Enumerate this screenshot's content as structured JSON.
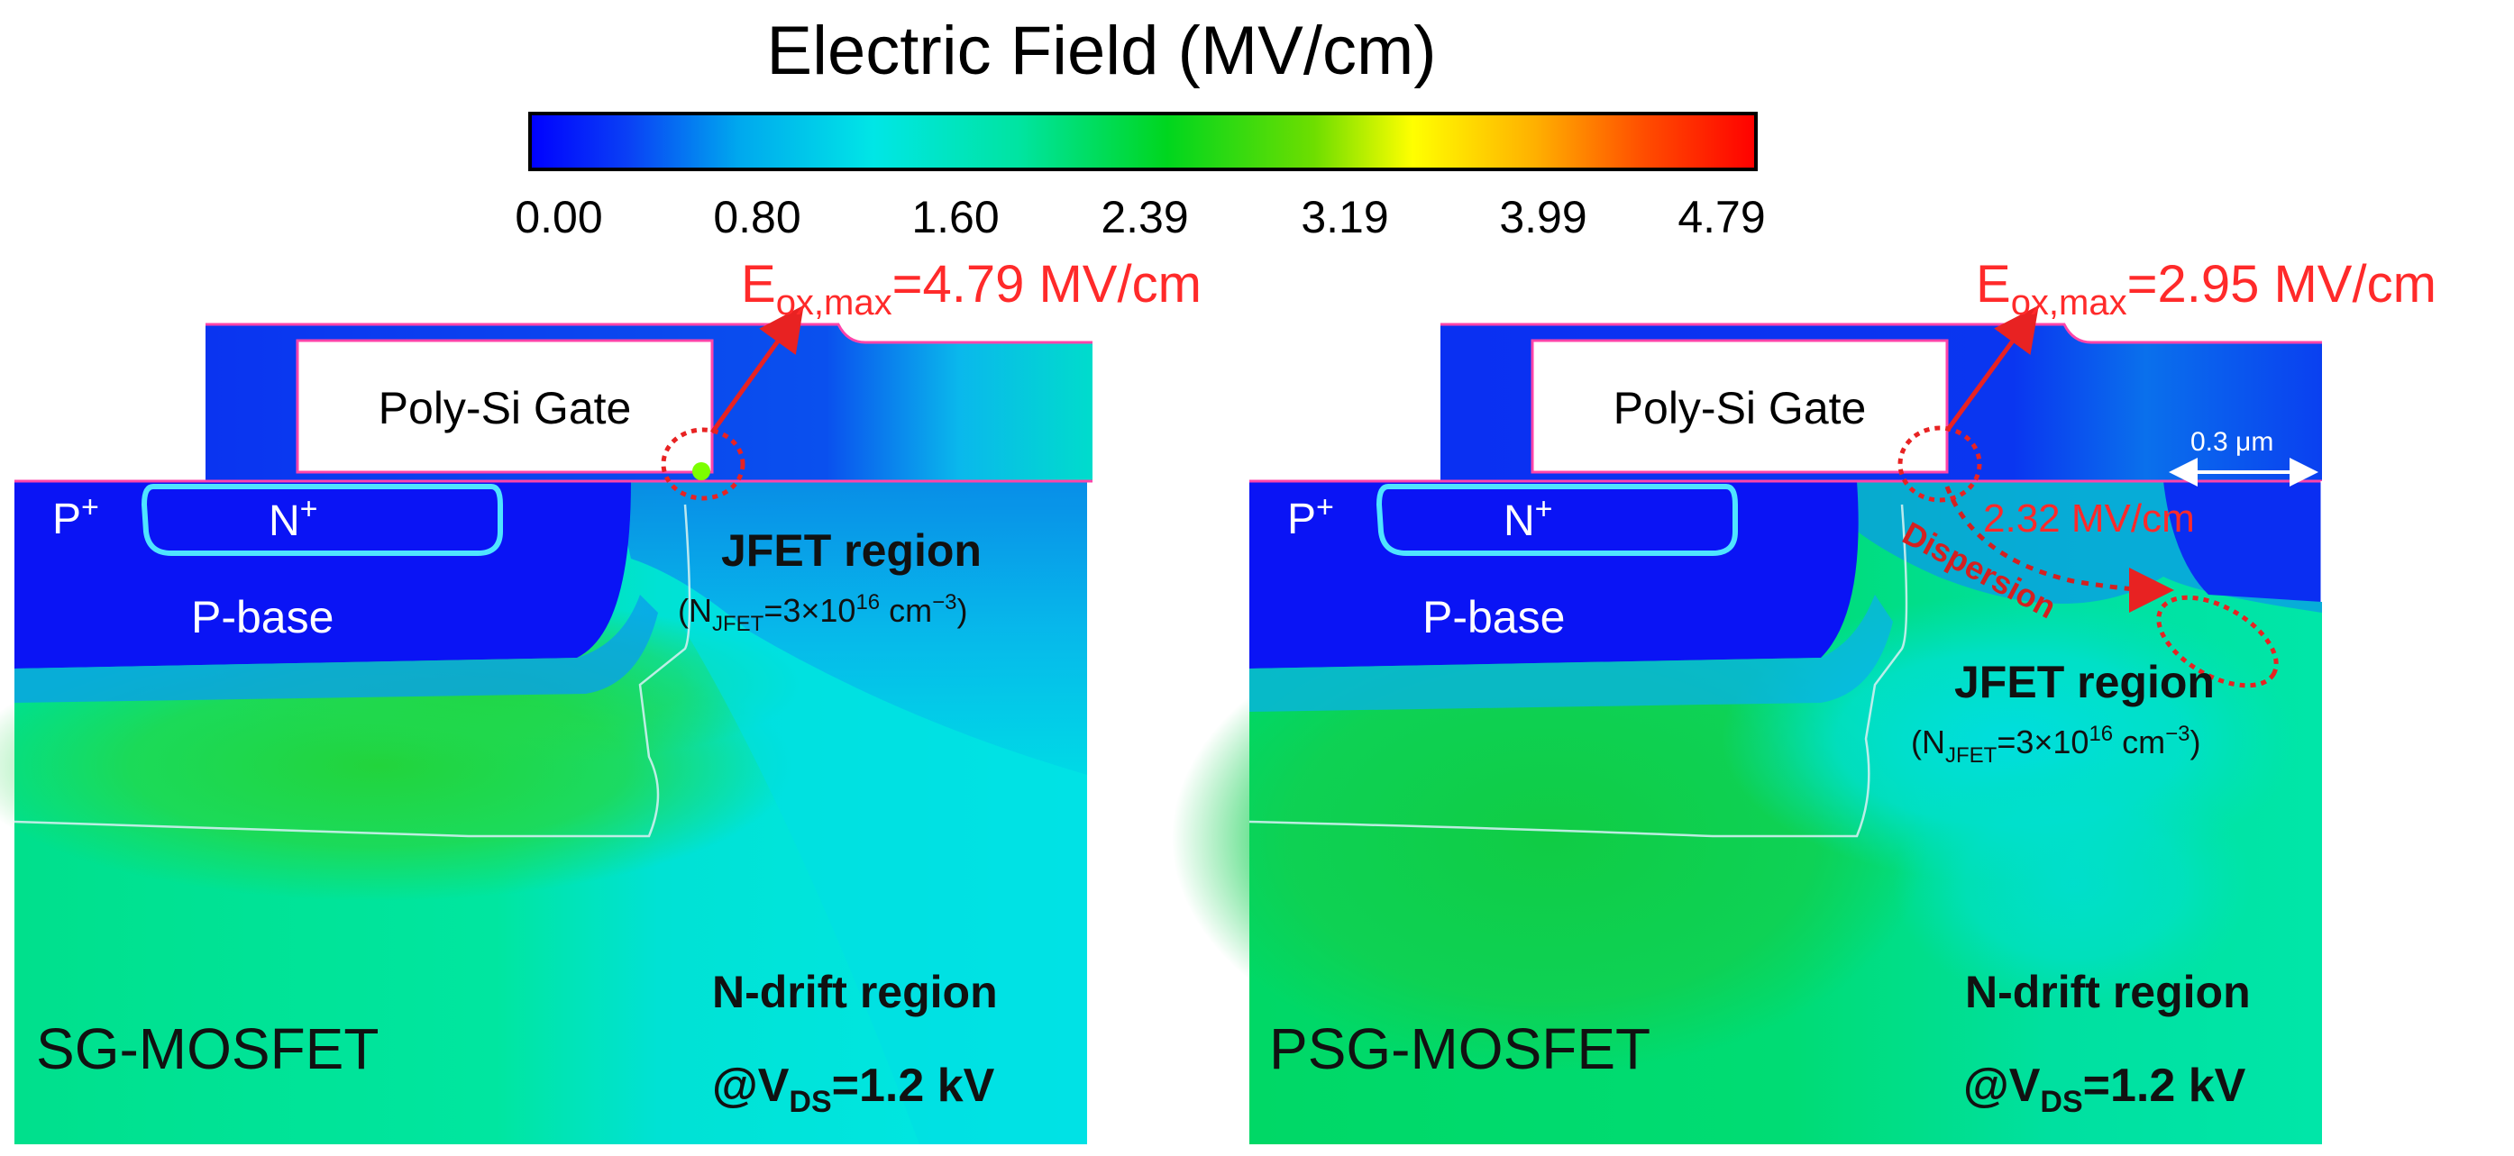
{
  "colorbar": {
    "title": "Electric Field (MV/cm)",
    "ticks": [
      "0.00",
      "0.80",
      "1.60",
      "2.39",
      "3.19",
      "3.99",
      "4.79"
    ],
    "colors": [
      "#0000ff",
      "#0a4cf0",
      "#00b4e6",
      "#00e6e6",
      "#00e08a",
      "#00d400",
      "#7ee000",
      "#ffff00",
      "#ffa500",
      "#ff3000",
      "#ff0000"
    ]
  },
  "left_panel": {
    "eox_symbol": "E",
    "eox_subscript": "ox,max",
    "eox_value": "=4.79 MV/cm",
    "gate_label": "Poly-Si Gate",
    "p_plus_label": "P",
    "p_plus_sup": "+",
    "n_plus_label": "N",
    "n_plus_sup": "+",
    "p_base_label": "P-base",
    "jfet_label": "JFET region",
    "jfet_doping_prefix": "(N",
    "jfet_doping_sub": "JFET",
    "jfet_doping_mid": "=3×10",
    "jfet_doping_sup": "16",
    "jfet_doping_suffix": " cm",
    "jfet_doping_exp": "−3",
    "jfet_doping_close": ")",
    "ndrift_label": "N-drift region",
    "device_label": "SG-MOSFET",
    "bias_prefix": "@V",
    "bias_sub": "DS",
    "bias_value": "=1.2 kV"
  },
  "right_panel": {
    "eox_symbol": "E",
    "eox_subscript": "ox,max",
    "eox_value": "=2.95 MV/cm",
    "gate_label": "Poly-Si Gate",
    "spacing_label": "0.3 μm",
    "p_plus_label": "P",
    "p_plus_sup": "+",
    "n_plus_label": "N",
    "n_plus_sup": "+",
    "p_base_label": "P-base",
    "secondary_peak_label": "2.32 MV/cm",
    "dispersion_label": "Dispersion",
    "jfet_label": "JFET region",
    "jfet_doping_prefix": "(N",
    "jfet_doping_sub": "JFET",
    "jfet_doping_mid": "=3×10",
    "jfet_doping_sup": "16",
    "jfet_doping_suffix": " cm",
    "jfet_doping_exp": "−3",
    "jfet_doping_close": ")",
    "ndrift_label": "N-drift region",
    "device_label": "PSG-MOSFET",
    "bias_prefix": "@V",
    "bias_sub": "DS",
    "bias_value": "=1.2 kV"
  },
  "colors": {
    "annotation_red": "#ff2a2a",
    "dark_red": "#d42020",
    "field_blue": "#0000ff",
    "field_green": "#00dd77",
    "field_cyan": "#00dede"
  }
}
